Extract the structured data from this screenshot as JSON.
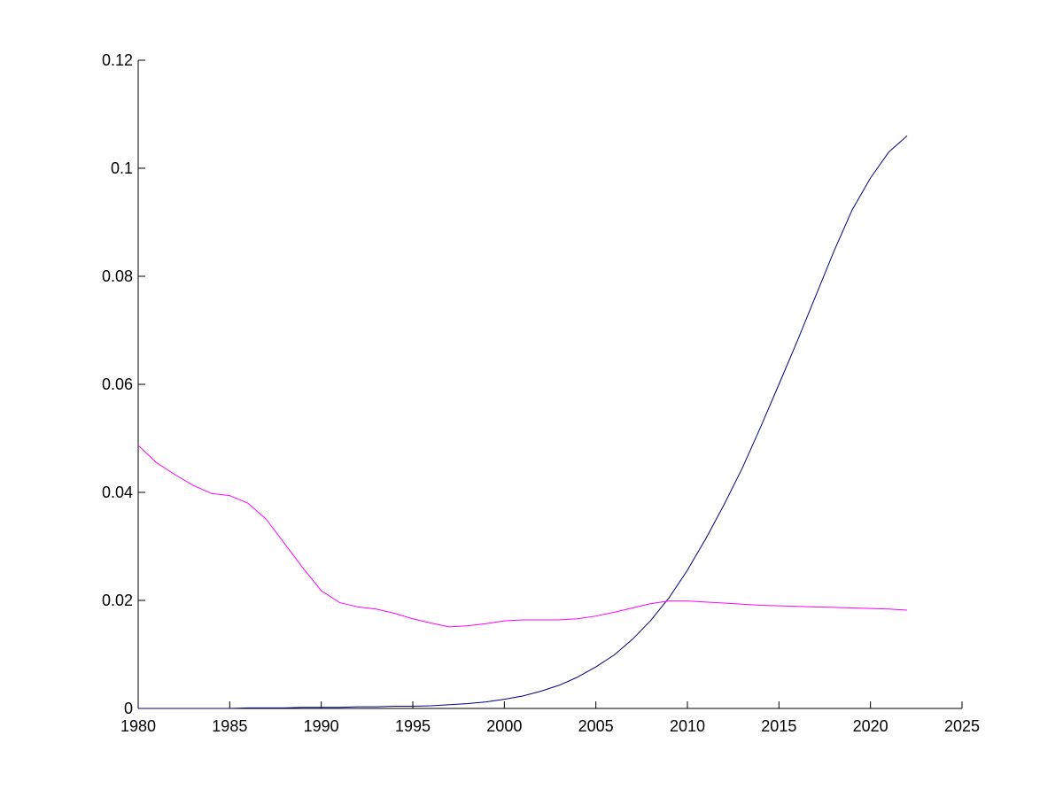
{
  "chart_data": {
    "type": "line",
    "title": "",
    "xlabel": "",
    "ylabel": "",
    "xlim": [
      1980,
      2025
    ],
    "ylim": [
      0,
      0.12
    ],
    "grid": false,
    "legend": "none",
    "x_ticks": [
      1980,
      1985,
      1990,
      1995,
      2000,
      2005,
      2010,
      2015,
      2020,
      2025
    ],
    "x_tick_labels": [
      "1980",
      "1985",
      "1990",
      "1995",
      "2000",
      "2005",
      "2010",
      "2015",
      "2020",
      "2025"
    ],
    "y_ticks": [
      0,
      0.02,
      0.04,
      0.06,
      0.08,
      0.1,
      0.12
    ],
    "y_tick_labels": [
      "0",
      "0.02",
      "0.04",
      "0.06",
      "0.08",
      "0.1",
      "0.12"
    ],
    "x": [
      1980,
      1981,
      1982,
      1983,
      1984,
      1985,
      1986,
      1987,
      1988,
      1989,
      1990,
      1991,
      1992,
      1993,
      1994,
      1995,
      1996,
      1997,
      1998,
      1999,
      2000,
      2001,
      2002,
      2003,
      2004,
      2005,
      2006,
      2007,
      2008,
      2009,
      2010,
      2011,
      2012,
      2013,
      2014,
      2015,
      2016,
      2017,
      2018,
      2019,
      2020,
      2021,
      2022
    ],
    "series": [
      {
        "color": "#000080",
        "values": [
          0,
          0,
          0,
          0,
          0,
          0,
          0.0001,
          0.0001,
          0.0001,
          0.0002,
          0.0002,
          0.0002,
          0.0003,
          0.0003,
          0.0004,
          0.0004,
          0.0005,
          0.0007,
          0.0009,
          0.0012,
          0.0017,
          0.0023,
          0.0032,
          0.0043,
          0.0058,
          0.0077,
          0.0099,
          0.0128,
          0.0163,
          0.0205,
          0.0256,
          0.0314,
          0.0377,
          0.0445,
          0.0521,
          0.06,
          0.068,
          0.0763,
          0.0846,
          0.0923,
          0.0982,
          0.103,
          0.106
        ]
      },
      {
        "color": "#ff00ff",
        "values": [
          0.0487,
          0.0455,
          0.0433,
          0.0413,
          0.0398,
          0.0394,
          0.038,
          0.035,
          0.0305,
          0.026,
          0.0218,
          0.0196,
          0.0188,
          0.0184,
          0.0176,
          0.0166,
          0.0158,
          0.0151,
          0.0153,
          0.0157,
          0.0162,
          0.0164,
          0.0164,
          0.0164,
          0.0166,
          0.0171,
          0.0178,
          0.0186,
          0.0194,
          0.0199,
          0.0199,
          0.0197,
          0.0195,
          0.0193,
          0.0191,
          0.019,
          0.0189,
          0.0188,
          0.0187,
          0.0186,
          0.0185,
          0.0184,
          0.0182
        ]
      }
    ]
  }
}
